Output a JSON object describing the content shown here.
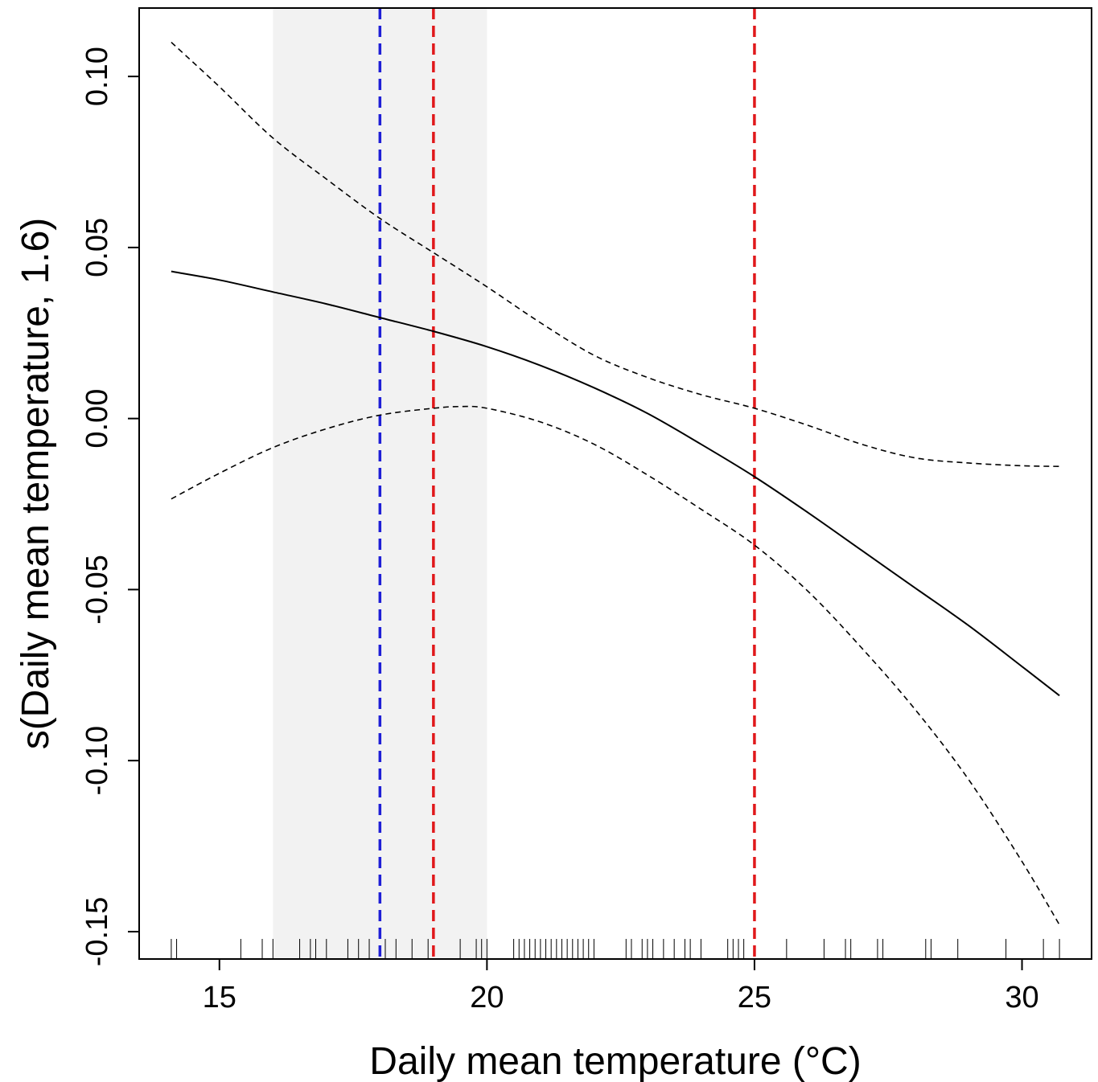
{
  "chart_data": {
    "type": "line",
    "title": "",
    "xlabel": "Daily mean temperature (°C)",
    "ylabel": "s(Daily mean temperature, 1.6)",
    "xlim": [
      13.5,
      31.3
    ],
    "ylim": [
      -0.158,
      0.12
    ],
    "x_ticks": [
      15,
      20,
      25,
      30
    ],
    "x_tick_labels": [
      "15",
      "20",
      "25",
      "30"
    ],
    "y_ticks": [
      -0.15,
      -0.1,
      -0.05,
      0.0,
      0.05,
      0.1
    ],
    "y_tick_labels": [
      "-0.15",
      "-0.10",
      "-0.05",
      "0.00",
      "0.05",
      "0.10"
    ],
    "grid": false,
    "legend": "none",
    "shaded_band": {
      "x_from": 16,
      "x_to": 20,
      "color": "#f2f2f2"
    },
    "reference_lines": [
      {
        "x": 18,
        "color": "#1f1fd6",
        "style": "dashed"
      },
      {
        "x": 19,
        "color": "#e0181b",
        "style": "dashed"
      },
      {
        "x": 25,
        "color": "#e0181b",
        "style": "dashed"
      }
    ],
    "series": [
      {
        "role": "fit",
        "style": "solid",
        "x": [
          14.1,
          15,
          16,
          17,
          18,
          19,
          20,
          21,
          22,
          23,
          24,
          25,
          26,
          27,
          28,
          29,
          30,
          30.7
        ],
        "values": [
          0.043,
          0.0405,
          0.037,
          0.0335,
          0.0295,
          0.0255,
          0.021,
          0.0155,
          0.009,
          0.0015,
          -0.0075,
          -0.017,
          -0.0275,
          -0.0385,
          -0.0495,
          -0.0605,
          -0.0725,
          -0.081
        ]
      },
      {
        "role": "upper",
        "style": "dashed",
        "x": [
          14.1,
          15,
          16,
          17,
          18,
          19,
          20,
          21,
          22,
          23,
          24,
          25,
          26,
          27,
          28,
          29,
          30,
          30.7
        ],
        "values": [
          0.11,
          0.097,
          0.082,
          0.07,
          0.0585,
          0.0485,
          0.0385,
          0.028,
          0.0185,
          0.012,
          0.007,
          0.003,
          -0.002,
          -0.0075,
          -0.0115,
          -0.013,
          -0.0138,
          -0.014
        ]
      },
      {
        "role": "lower",
        "style": "dashed",
        "x": [
          14.1,
          15,
          16,
          17,
          18,
          19,
          19.5,
          20,
          21,
          22,
          23,
          24,
          25,
          26,
          27,
          28,
          29,
          30,
          30.7
        ],
        "values": [
          -0.0235,
          -0.016,
          -0.0085,
          -0.003,
          0.001,
          0.003,
          0.0035,
          0.003,
          -0.001,
          -0.0075,
          -0.0165,
          -0.0265,
          -0.037,
          -0.0505,
          -0.067,
          -0.085,
          -0.1055,
          -0.1295,
          -0.148
        ]
      }
    ],
    "rug": [
      14.1,
      14.2,
      15.4,
      15.8,
      16.0,
      16.5,
      16.7,
      16.8,
      17.0,
      17.4,
      17.6,
      17.8,
      18.1,
      18.3,
      18.6,
      18.9,
      19.5,
      19.8,
      19.9,
      20.0,
      20.5,
      20.6,
      20.7,
      20.8,
      20.9,
      21.0,
      21.1,
      21.2,
      21.3,
      21.4,
      21.5,
      21.6,
      21.7,
      21.8,
      21.9,
      22.0,
      22.6,
      22.7,
      22.9,
      23.0,
      23.1,
      23.3,
      23.5,
      23.7,
      23.8,
      24.0,
      24.5,
      24.6,
      24.7,
      24.8,
      25.6,
      26.3,
      26.7,
      26.8,
      27.3,
      27.4,
      28.2,
      28.3,
      28.8,
      29.7,
      30.4,
      30.7
    ]
  }
}
